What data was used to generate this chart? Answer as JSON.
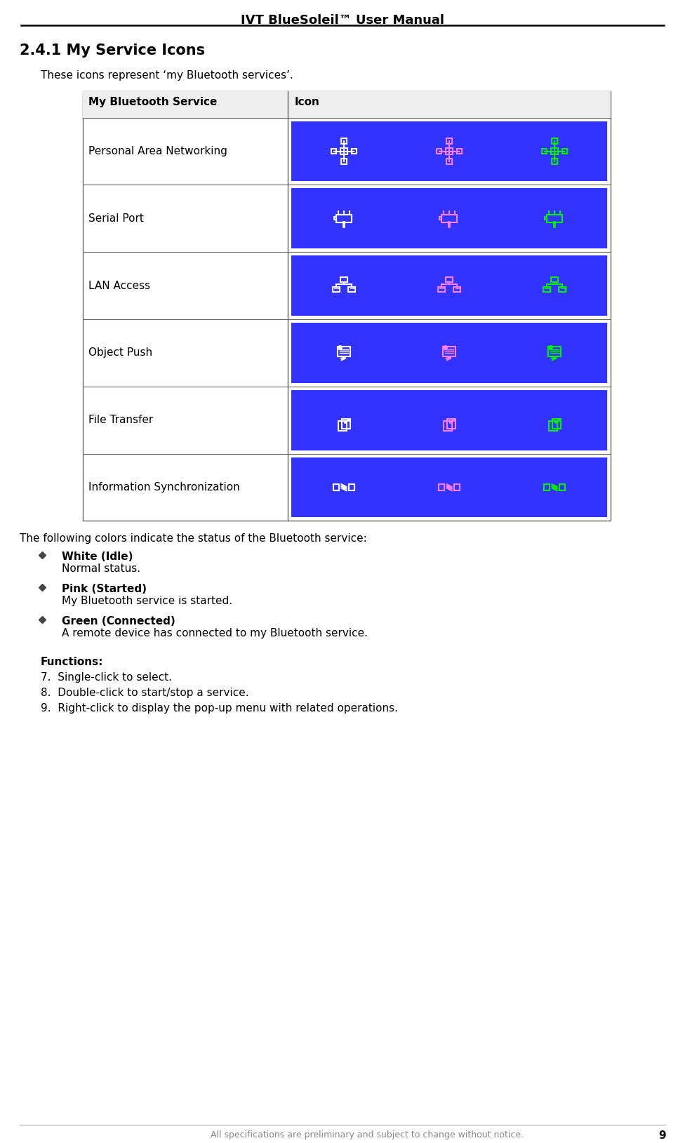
{
  "title": "IVT BlueSoleil™ User Manual",
  "footer": "All specifications are preliminary and subject to change without notice.",
  "page_number": "9",
  "section_title": "2.4.1 My Service Icons",
  "intro_text": "These icons represent ‘my Bluetooth services’.",
  "table_header_col1": "My Bluetooth Service",
  "table_header_col2": "Icon",
  "table_rows": [
    "Personal Area Networking",
    "Serial Port",
    "LAN Access",
    "Object Push",
    "File Transfer",
    "Information Synchronization"
  ],
  "blue_bg": "#3333FF",
  "icon_colors": [
    "white",
    "#ff80ff",
    "#00ee00"
  ],
  "colors_bold": [
    "White (Idle)",
    "Pink (Started)",
    "Green (Connected)"
  ],
  "colors_normal": [
    "Normal status.",
    "My Bluetooth service is started.",
    "A remote device has connected to my Bluetooth service."
  ],
  "functions_title": "Functions:",
  "functions_numbers": [
    "7.",
    "8.",
    "9."
  ],
  "functions_list": [
    "Single-click to select.",
    "Double-click to start/stop a service.",
    "Right-click to display the pop-up menu with related operations."
  ]
}
